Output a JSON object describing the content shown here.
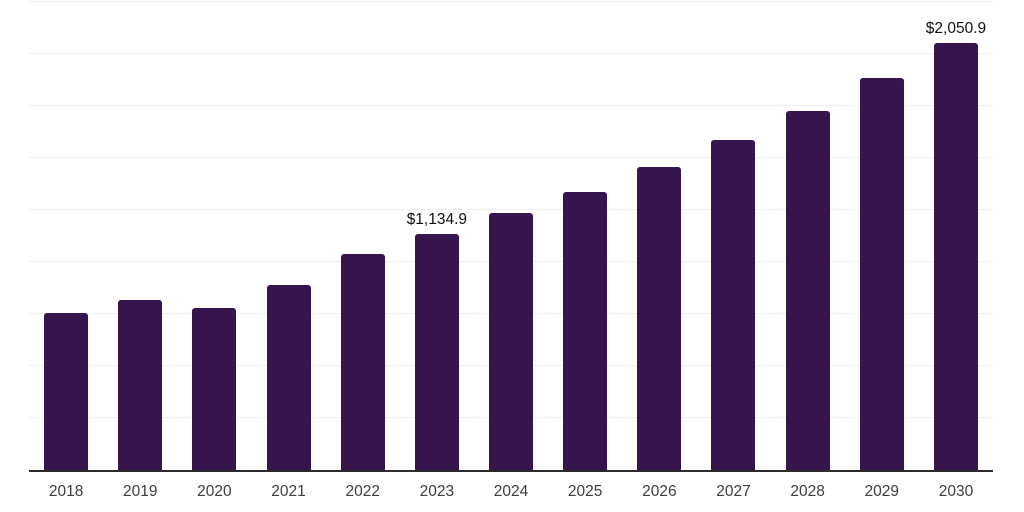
{
  "chart_data": {
    "type": "bar",
    "title": "",
    "xlabel": "",
    "ylabel": "",
    "categories": [
      "2018",
      "2019",
      "2020",
      "2021",
      "2022",
      "2023",
      "2024",
      "2025",
      "2026",
      "2027",
      "2028",
      "2029",
      "2030"
    ],
    "values": [
      756,
      817,
      777,
      891,
      1038,
      1134.9,
      1237,
      1339,
      1455,
      1587,
      1726,
      1885,
      2050.9
    ],
    "point_labels": [
      "",
      "",
      "",
      "",
      "",
      "$1,134.9",
      "",
      "",
      "",
      "",
      "",
      "",
      "$2,050.9"
    ],
    "labeled_points": [
      {
        "category": "2023",
        "label": "$1,134.9",
        "value": 1134.9
      },
      {
        "category": "2030",
        "label": "$2,050.9",
        "value": 2050.9
      }
    ],
    "ylim": [
      0,
      2250
    ],
    "grid_step": 250,
    "grid_visible": true,
    "y_tick_labels_visible": false,
    "legend_position": "none",
    "colors": {
      "bar": "#36154E",
      "gridline": "#efefef",
      "axis_line": "#2b2b2b",
      "tick_label": "#3d3d3d",
      "data_label": "#111111",
      "background": "#ffffff"
    }
  }
}
